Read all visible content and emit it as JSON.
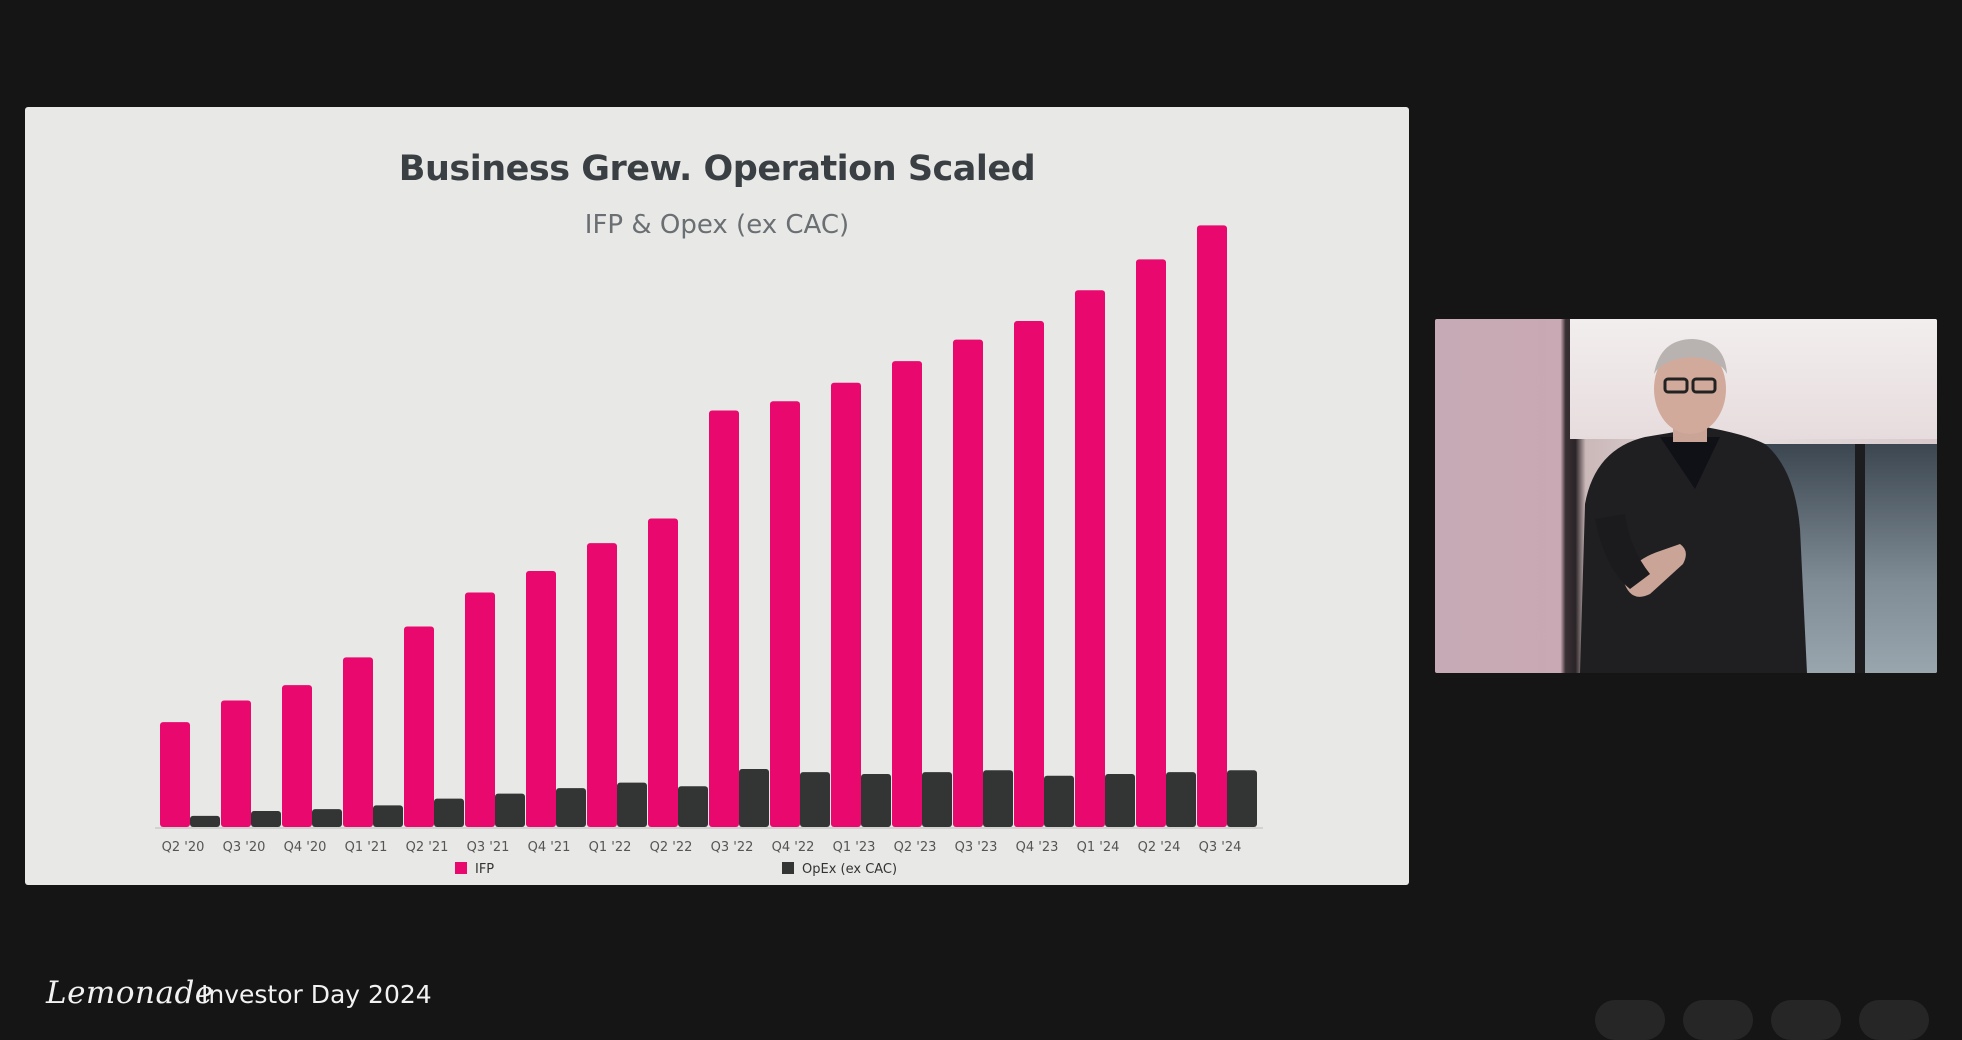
{
  "slide": {
    "title": "Business Grew. Operation Scaled",
    "subtitle": "IFP & Opex (ex CAC)"
  },
  "chart_data": {
    "type": "bar",
    "title": "Business Grew. Operation Scaled",
    "subtitle": "IFP & Opex (ex CAC)",
    "categories": [
      "Q2 '20",
      "Q3 '20",
      "Q4 '20",
      "Q1 '21",
      "Q2 '21",
      "Q3 '21",
      "Q4 '21",
      "Q1 '22",
      "Q2 '22",
      "Q3 '22",
      "Q4 '22",
      "Q1 '23",
      "Q2 '23",
      "Q3 '23",
      "Q4 '23",
      "Q1 '24",
      "Q2 '24",
      "Q3 '24"
    ],
    "series": [
      {
        "name": "IFP",
        "color": "#e8086e",
        "values": [
          17,
          20.5,
          23,
          27.5,
          32.5,
          38,
          41.5,
          46,
          50,
          67.5,
          69,
          72,
          75.5,
          79,
          82,
          87,
          92,
          97.5
        ]
      },
      {
        "name": "OpEx (ex CAC)",
        "color": "#333535",
        "values": [
          1.8,
          2.6,
          2.9,
          3.5,
          4.6,
          5.4,
          6.3,
          7.2,
          6.6,
          9.4,
          8.9,
          8.6,
          8.9,
          9.2,
          8.3,
          8.6,
          8.9,
          9.2
        ]
      }
    ],
    "ylim": [
      0,
      100
    ],
    "grid": false,
    "legend": "bottom",
    "xlabel": "",
    "ylabel": ""
  },
  "footer": {
    "logo": "Lemonade",
    "event": "Investor Day 2024"
  }
}
